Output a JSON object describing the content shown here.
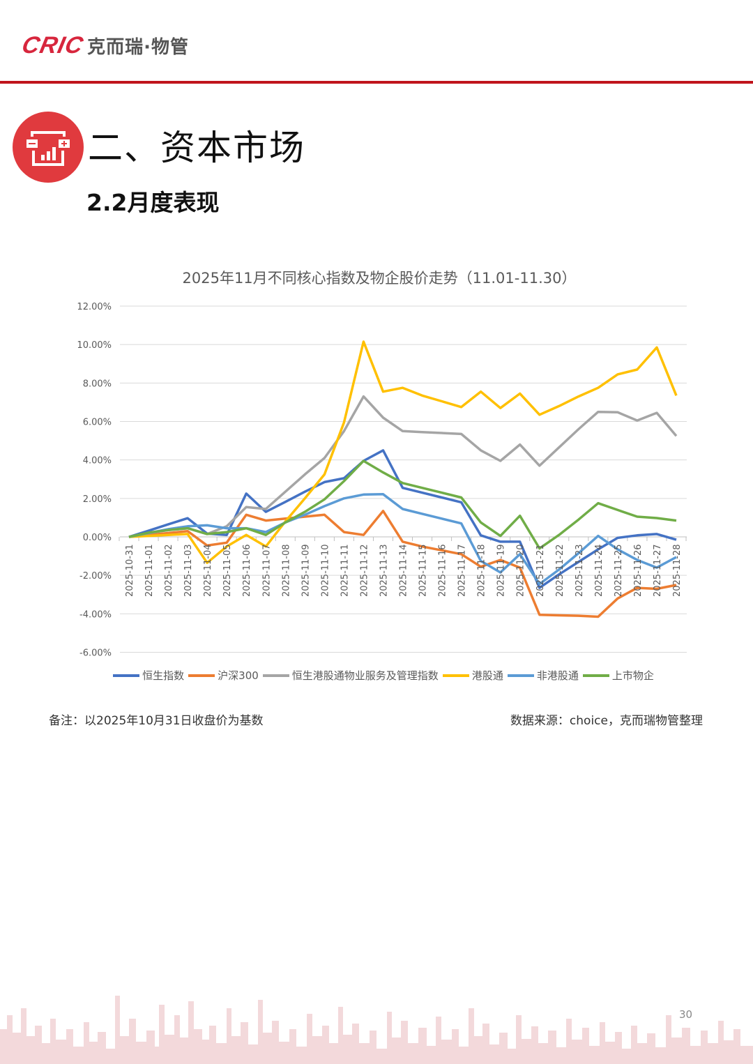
{
  "header": {
    "logo_mark": "CRIC",
    "logo_text": "克而瑞·物管"
  },
  "section": {
    "icon": "chart-wallet-icon",
    "title": "二、资本市场",
    "subtitle": "2.2月度表现"
  },
  "chart_data": {
    "type": "line",
    "title": "2025年11月不同核心指数及物企股价走势（11.01-11.30）",
    "xlabel": "",
    "ylabel": "",
    "ylim": [
      -6,
      12
    ],
    "yticks": [
      "12.00%",
      "10.00%",
      "8.00%",
      "6.00%",
      "4.00%",
      "2.00%",
      "0.00%",
      "-2.00%",
      "-4.00%",
      "-6.00%"
    ],
    "grid": true,
    "legend_position": "bottom",
    "categories": [
      "2025-10-31",
      "2025-11-01",
      "2025-11-02",
      "2025-11-03",
      "2025-11-04",
      "2025-11-05",
      "2025-11-06",
      "2025-11-07",
      "2025-11-08",
      "2025-11-09",
      "2025-11-10",
      "2025-11-11",
      "2025-11-12",
      "2025-11-13",
      "2025-11-14",
      "2025-11-15",
      "2025-11-16",
      "2025-11-17",
      "2025-11-18",
      "2025-11-19",
      "2025-11-20",
      "2025-11-21",
      "2025-11-22",
      "2025-11-23",
      "2025-11-24",
      "2025-11-25",
      "2025-11-26",
      "2025-11-27",
      "2025-11-28"
    ],
    "series": [
      {
        "name": "恒生指数",
        "color": "#4472c4",
        "values": [
          0,
          0.32,
          0.65,
          0.97,
          0.17,
          0.1,
          2.25,
          1.3,
          1.82,
          2.35,
          2.85,
          3.05,
          3.95,
          4.5,
          2.55,
          2.3,
          2.05,
          1.8,
          0.08,
          -0.25,
          -0.25,
          -2.65,
          -1.95,
          -1.3,
          -0.65,
          -0.05,
          0.08,
          0.15,
          -0.15
        ]
      },
      {
        "name": "沪深300",
        "color": "#ed7d31",
        "values": [
          0,
          0.1,
          0.2,
          0.3,
          -0.45,
          -0.3,
          1.15,
          0.85,
          0.95,
          1.05,
          1.15,
          0.25,
          0.1,
          1.35,
          -0.25,
          -0.5,
          -0.7,
          -0.9,
          -1.55,
          -1.2,
          -1.6,
          -4.05,
          -4.08,
          -4.1,
          -4.15,
          -3.2,
          -2.65,
          -2.7,
          -2.5
        ]
      },
      {
        "name": "恒生港股通物业服务及管理指数",
        "color": "#a5a5a5",
        "values": [
          0,
          0.2,
          0.35,
          0.45,
          0.15,
          0.55,
          1.55,
          1.45,
          2.35,
          3.25,
          4.1,
          5.5,
          7.3,
          6.2,
          5.5,
          5.45,
          5.4,
          5.35,
          4.5,
          3.95,
          4.8,
          3.7,
          4.65,
          5.6,
          6.5,
          6.48,
          6.05,
          6.45,
          5.25
        ]
      },
      {
        "name": "港股通",
        "color": "#ffc000",
        "values": [
          0,
          0.05,
          0.1,
          0.15,
          -1.35,
          -0.5,
          0.1,
          -0.5,
          0.8,
          2.0,
          3.25,
          5.95,
          10.15,
          7.55,
          7.75,
          7.35,
          7.05,
          6.75,
          7.55,
          6.7,
          7.45,
          6.35,
          6.8,
          7.3,
          7.75,
          8.45,
          8.7,
          9.85,
          7.35
        ]
      },
      {
        "name": "非港股通",
        "color": "#5b9bd5",
        "values": [
          0,
          0.2,
          0.4,
          0.55,
          0.6,
          0.45,
          0.45,
          0.25,
          0.75,
          1.15,
          1.6,
          2.0,
          2.2,
          2.22,
          1.45,
          1.2,
          0.95,
          0.7,
          -1.25,
          -1.85,
          -0.9,
          -2.45,
          -1.7,
          -0.85,
          0.05,
          -0.65,
          -1.2,
          -1.6,
          -1.05
        ]
      },
      {
        "name": "上市物企",
        "color": "#70ad47",
        "values": [
          0,
          0.22,
          0.35,
          0.45,
          0.15,
          0.25,
          0.45,
          0.1,
          0.75,
          1.3,
          1.95,
          2.9,
          3.95,
          3.35,
          2.8,
          2.55,
          2.3,
          2.05,
          0.75,
          0.05,
          1.1,
          -0.6,
          0.1,
          0.9,
          1.75,
          1.4,
          1.05,
          0.98,
          0.85
        ]
      }
    ]
  },
  "legend": [
    {
      "label": "恒生指数",
      "color": "#4472c4"
    },
    {
      "label": "沪深300",
      "color": "#ed7d31"
    },
    {
      "label": "恒生港股通物业服务及管理指数",
      "color": "#a5a5a5"
    },
    {
      "label": "港股通",
      "color": "#ffc000"
    },
    {
      "label": "非港股通",
      "color": "#5b9bd5"
    },
    {
      "label": "上市物企",
      "color": "#70ad47"
    }
  ],
  "footer": {
    "note": "备注：以2025年10月31日收盘价为基数",
    "source": "数据来源：choice，克而瑞物管整理",
    "page_number": "30"
  },
  "colors": {
    "brand_red": "#c0141c",
    "icon_red": "#e03a3e"
  }
}
